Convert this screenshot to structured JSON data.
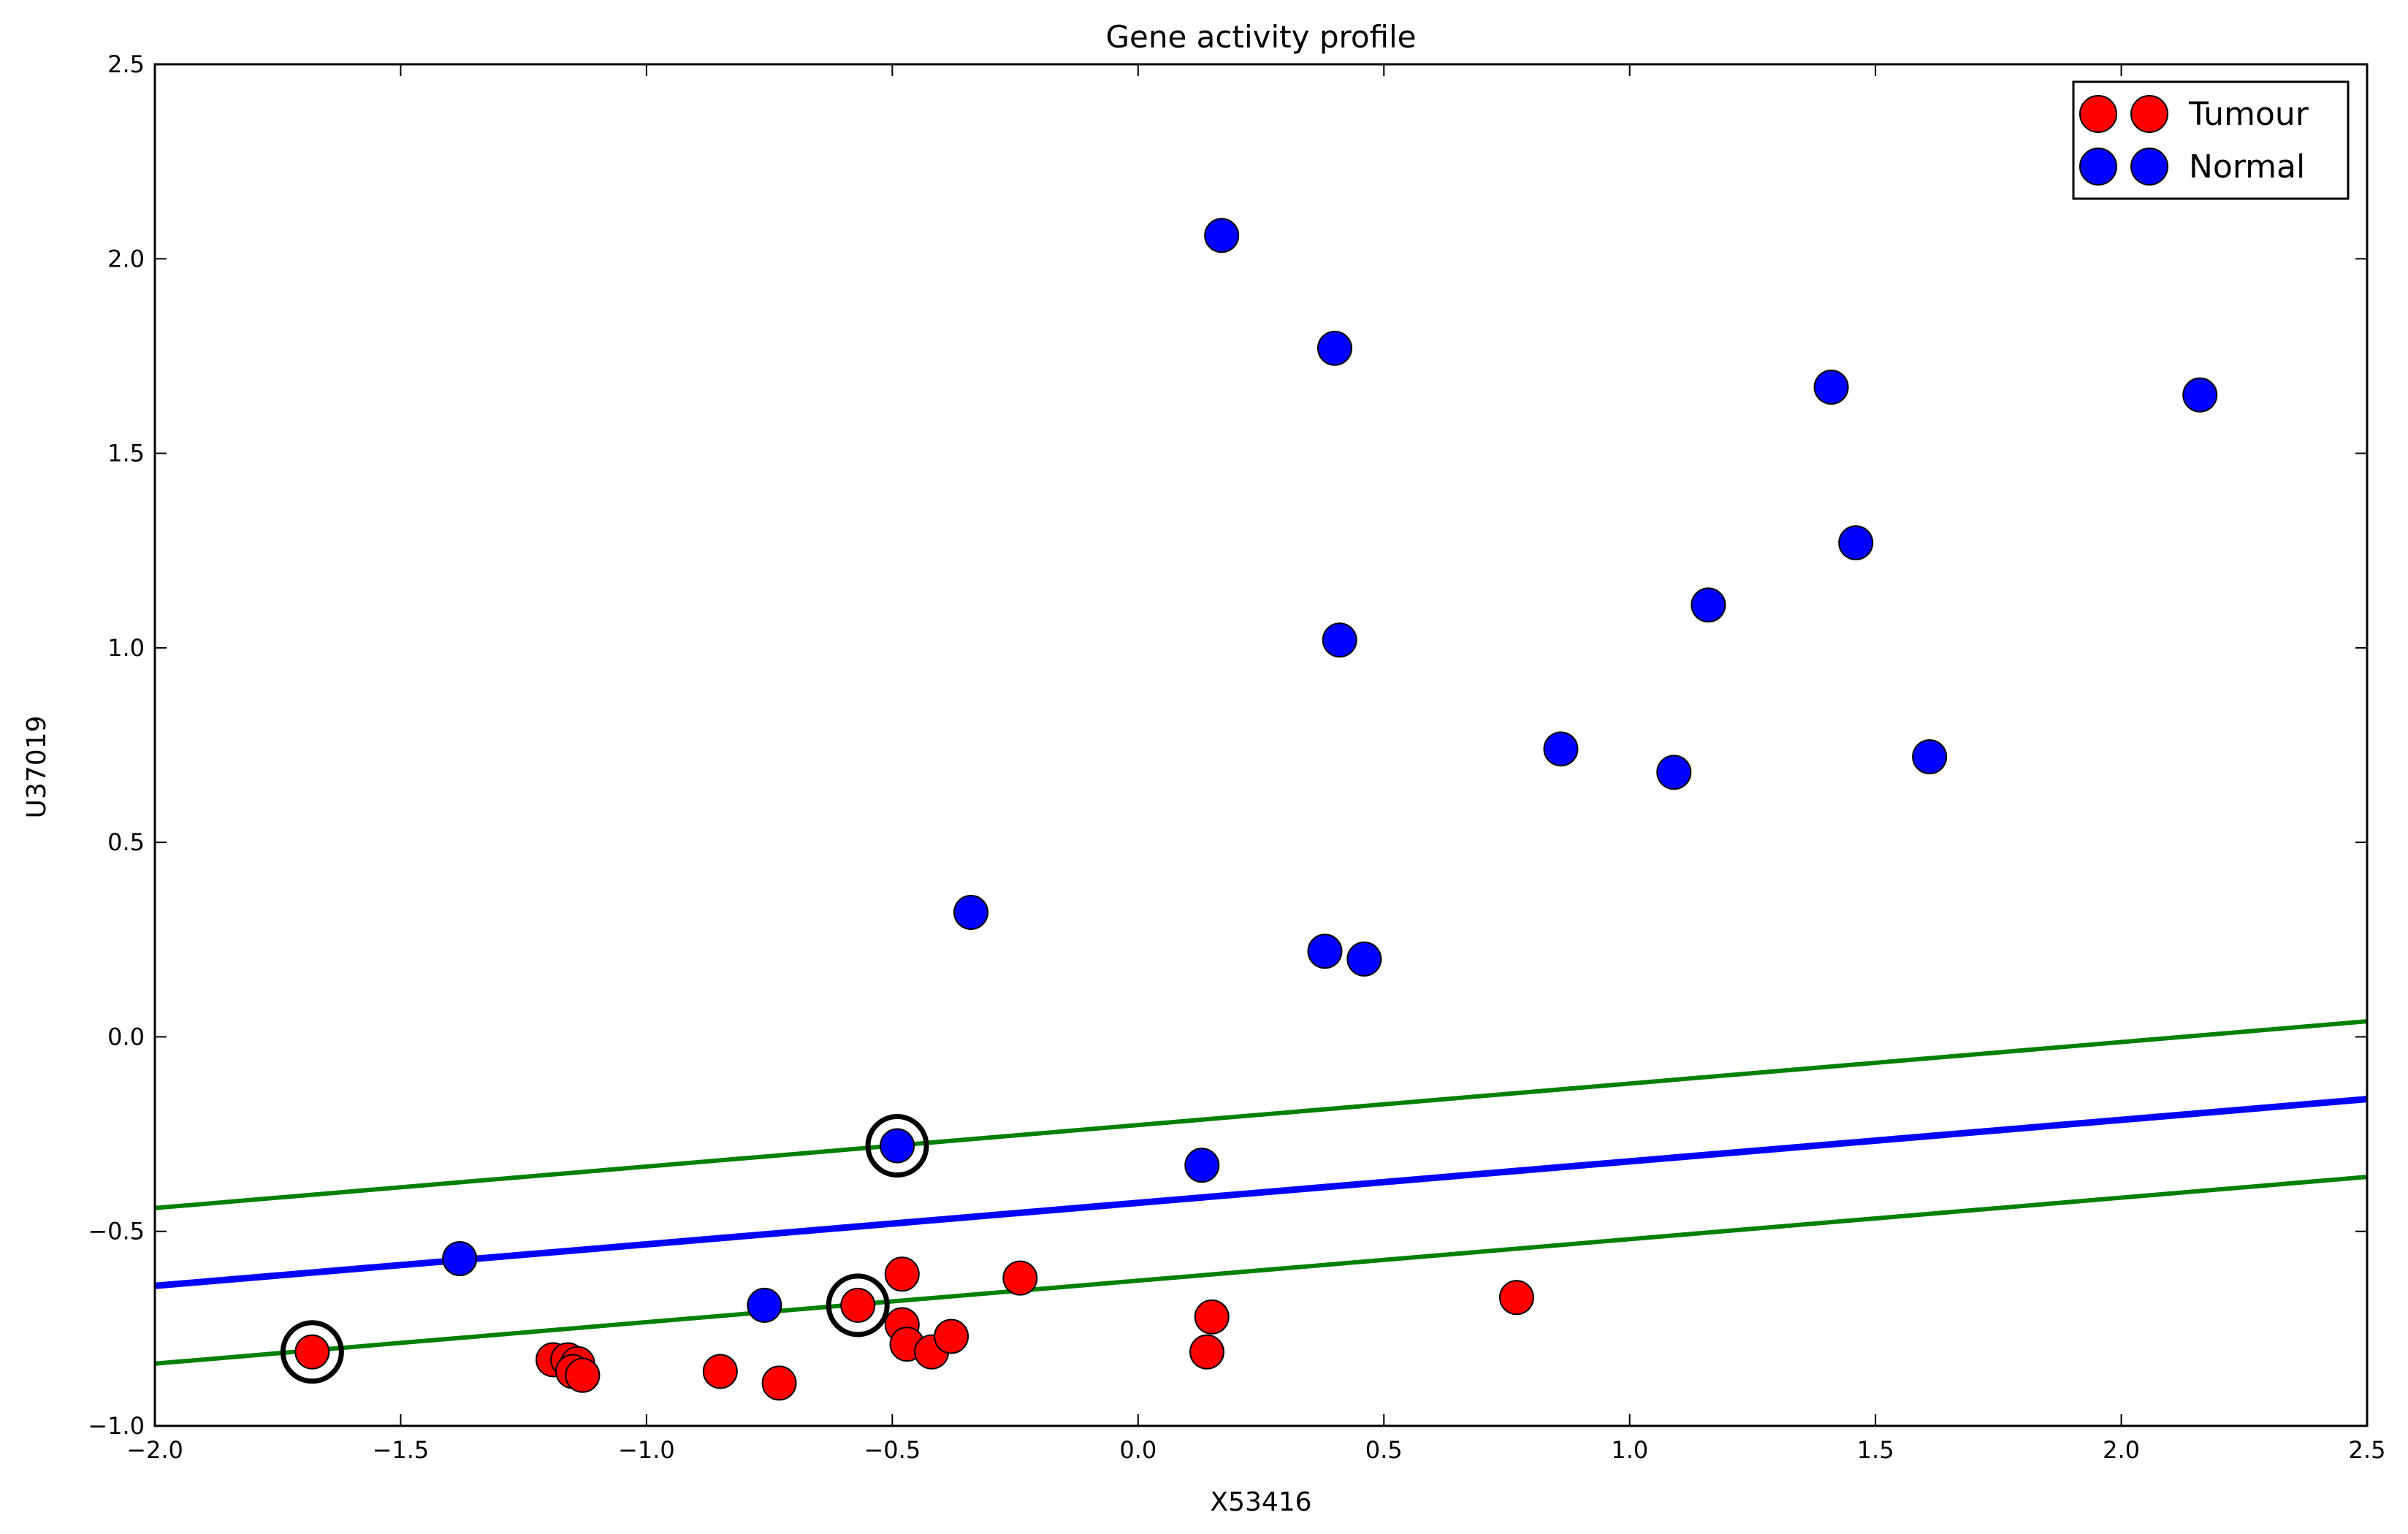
{
  "chart_data": {
    "type": "scatter",
    "title": "Gene activity profile",
    "xlabel": "X53416",
    "ylabel": "U37019",
    "xlim": [
      -2.0,
      2.5
    ],
    "ylim": [
      -1.0,
      2.5
    ],
    "xticks": [
      "−2.0",
      "−1.5",
      "−1.0",
      "−0.5",
      "0.0",
      "0.5",
      "1.0",
      "1.5",
      "2.0",
      "2.5"
    ],
    "xtick_values": [
      -2.0,
      -1.5,
      -1.0,
      -0.5,
      0.0,
      0.5,
      1.0,
      1.5,
      2.0,
      2.5
    ],
    "yticks": [
      "−1.0",
      "−0.5",
      "0.0",
      "0.5",
      "1.0",
      "1.5",
      "2.0",
      "2.5"
    ],
    "ytick_values": [
      -1.0,
      -0.5,
      0.0,
      0.5,
      1.0,
      1.5,
      2.0,
      2.5
    ],
    "grid": false,
    "legend_position": "top-right",
    "series": [
      {
        "name": "Tumour",
        "color": "#ff0000",
        "points": [
          [
            -1.68,
            -0.81
          ],
          [
            -1.19,
            -0.83
          ],
          [
            -1.16,
            -0.83
          ],
          [
            -1.14,
            -0.84
          ],
          [
            -1.15,
            -0.86
          ],
          [
            -1.13,
            -0.87
          ],
          [
            -0.85,
            -0.86
          ],
          [
            -0.73,
            -0.89
          ],
          [
            -0.57,
            -0.69
          ],
          [
            -0.48,
            -0.61
          ],
          [
            -0.48,
            -0.74
          ],
          [
            -0.47,
            -0.79
          ],
          [
            -0.42,
            -0.81
          ],
          [
            -0.38,
            -0.77
          ],
          [
            -0.24,
            -0.62
          ],
          [
            0.14,
            -0.81
          ],
          [
            0.15,
            -0.72
          ],
          [
            0.77,
            -0.67
          ]
        ]
      },
      {
        "name": "Normal",
        "color": "#0000ff",
        "points": [
          [
            -1.38,
            -0.57
          ],
          [
            -0.76,
            -0.69
          ],
          [
            -0.49,
            -0.28
          ],
          [
            -0.34,
            0.32
          ],
          [
            0.13,
            -0.33
          ],
          [
            0.17,
            2.06
          ],
          [
            0.38,
            0.22
          ],
          [
            0.4,
            1.77
          ],
          [
            0.41,
            1.02
          ],
          [
            0.46,
            0.2
          ],
          [
            0.86,
            0.74
          ],
          [
            1.09,
            0.68
          ],
          [
            1.16,
            1.11
          ],
          [
            1.41,
            1.67
          ],
          [
            1.46,
            1.27
          ],
          [
            1.61,
            0.72
          ],
          [
            2.16,
            1.65
          ]
        ]
      }
    ],
    "lines": [
      {
        "role": "decision-boundary",
        "color": "#0000ff",
        "points": [
          [
            -2.0,
            -0.64
          ],
          [
            2.5,
            -0.16
          ]
        ]
      },
      {
        "role": "margin-upper",
        "color": "#008000",
        "points": [
          [
            -2.0,
            -0.44
          ],
          [
            2.5,
            0.04
          ]
        ]
      },
      {
        "role": "margin-lower",
        "color": "#008000",
        "points": [
          [
            -2.0,
            -0.84
          ],
          [
            2.5,
            -0.36
          ]
        ]
      }
    ],
    "support_vectors": [
      [
        -1.68,
        -0.81
      ],
      [
        -0.57,
        -0.69
      ],
      [
        -0.49,
        -0.28
      ]
    ]
  }
}
